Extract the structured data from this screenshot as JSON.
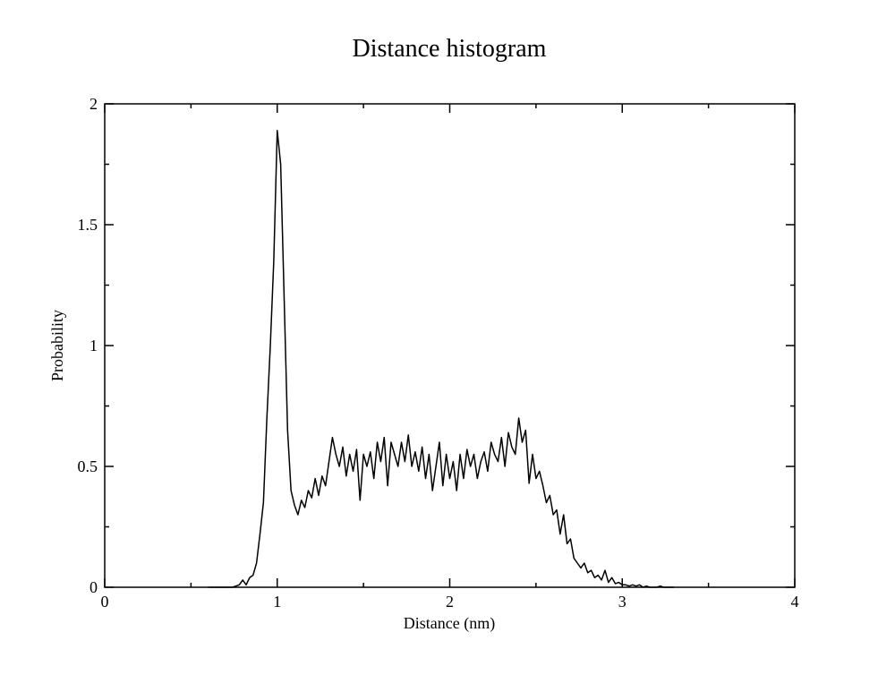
{
  "chart_data": {
    "type": "line",
    "title": "Distance histogram",
    "xlabel": "Distance (nm)",
    "ylabel": "Probability",
    "x": [
      0.6,
      0.62,
      0.64,
      0.66,
      0.68,
      0.7,
      0.72,
      0.74,
      0.76,
      0.78,
      0.8,
      0.82,
      0.84,
      0.86,
      0.88,
      0.9,
      0.92,
      0.94,
      0.96,
      0.98,
      1.0,
      1.02,
      1.04,
      1.06,
      1.08,
      1.1,
      1.12,
      1.14,
      1.16,
      1.18,
      1.2,
      1.22,
      1.24,
      1.26,
      1.28,
      1.3,
      1.32,
      1.34,
      1.36,
      1.38,
      1.4,
      1.42,
      1.44,
      1.46,
      1.48,
      1.5,
      1.52,
      1.54,
      1.56,
      1.58,
      1.6,
      1.62,
      1.64,
      1.66,
      1.68,
      1.7,
      1.72,
      1.74,
      1.76,
      1.78,
      1.8,
      1.82,
      1.84,
      1.86,
      1.88,
      1.9,
      1.92,
      1.94,
      1.96,
      1.98,
      2.0,
      2.02,
      2.04,
      2.06,
      2.08,
      2.1,
      2.12,
      2.14,
      2.16,
      2.18,
      2.2,
      2.22,
      2.24,
      2.26,
      2.28,
      2.3,
      2.32,
      2.34,
      2.36,
      2.38,
      2.4,
      2.42,
      2.44,
      2.46,
      2.48,
      2.5,
      2.52,
      2.54,
      2.56,
      2.58,
      2.6,
      2.62,
      2.64,
      2.66,
      2.68,
      2.7,
      2.72,
      2.74,
      2.76,
      2.78,
      2.8,
      2.82,
      2.84,
      2.86,
      2.88,
      2.9,
      2.92,
      2.94,
      2.96,
      2.98,
      3.0,
      3.02,
      3.04,
      3.06,
      3.08,
      3.1,
      3.12,
      3.14,
      3.16,
      3.18,
      3.2,
      3.22,
      3.24,
      3.26,
      3.28,
      3.3
    ],
    "values": [
      0,
      0,
      0,
      0,
      0,
      0,
      0,
      0,
      0.005,
      0.01,
      0.03,
      0.01,
      0.04,
      0.05,
      0.1,
      0.22,
      0.35,
      0.7,
      1.0,
      1.35,
      1.89,
      1.75,
      1.2,
      0.65,
      0.4,
      0.34,
      0.3,
      0.36,
      0.33,
      0.4,
      0.37,
      0.45,
      0.38,
      0.46,
      0.42,
      0.52,
      0.62,
      0.55,
      0.5,
      0.58,
      0.46,
      0.55,
      0.48,
      0.57,
      0.36,
      0.55,
      0.5,
      0.56,
      0.45,
      0.6,
      0.52,
      0.62,
      0.42,
      0.6,
      0.55,
      0.5,
      0.6,
      0.52,
      0.63,
      0.5,
      0.56,
      0.48,
      0.58,
      0.45,
      0.55,
      0.4,
      0.5,
      0.6,
      0.42,
      0.55,
      0.45,
      0.52,
      0.4,
      0.55,
      0.45,
      0.57,
      0.5,
      0.55,
      0.45,
      0.52,
      0.56,
      0.48,
      0.6,
      0.55,
      0.52,
      0.62,
      0.5,
      0.64,
      0.58,
      0.55,
      0.7,
      0.6,
      0.65,
      0.43,
      0.55,
      0.45,
      0.48,
      0.42,
      0.35,
      0.38,
      0.3,
      0.32,
      0.22,
      0.3,
      0.18,
      0.2,
      0.12,
      0.1,
      0.08,
      0.1,
      0.06,
      0.07,
      0.04,
      0.05,
      0.03,
      0.07,
      0.02,
      0.04,
      0.015,
      0.02,
      0.01,
      0.01,
      0.005,
      0.01,
      0.005,
      0.01,
      0,
      0.005,
      0,
      0,
      0,
      0.005,
      0,
      0,
      0,
      0
    ],
    "color": "#000000",
    "xlim": [
      0,
      4
    ],
    "xticks": [
      0,
      1,
      2,
      3,
      4
    ],
    "xminor": [
      0.5,
      1.5,
      2.5,
      3.5
    ],
    "ylim": [
      0,
      2
    ],
    "yticks": [
      0,
      0.5,
      1,
      1.5,
      2
    ],
    "yminor": [
      0.25,
      0.75,
      1.25,
      1.75
    ]
  }
}
